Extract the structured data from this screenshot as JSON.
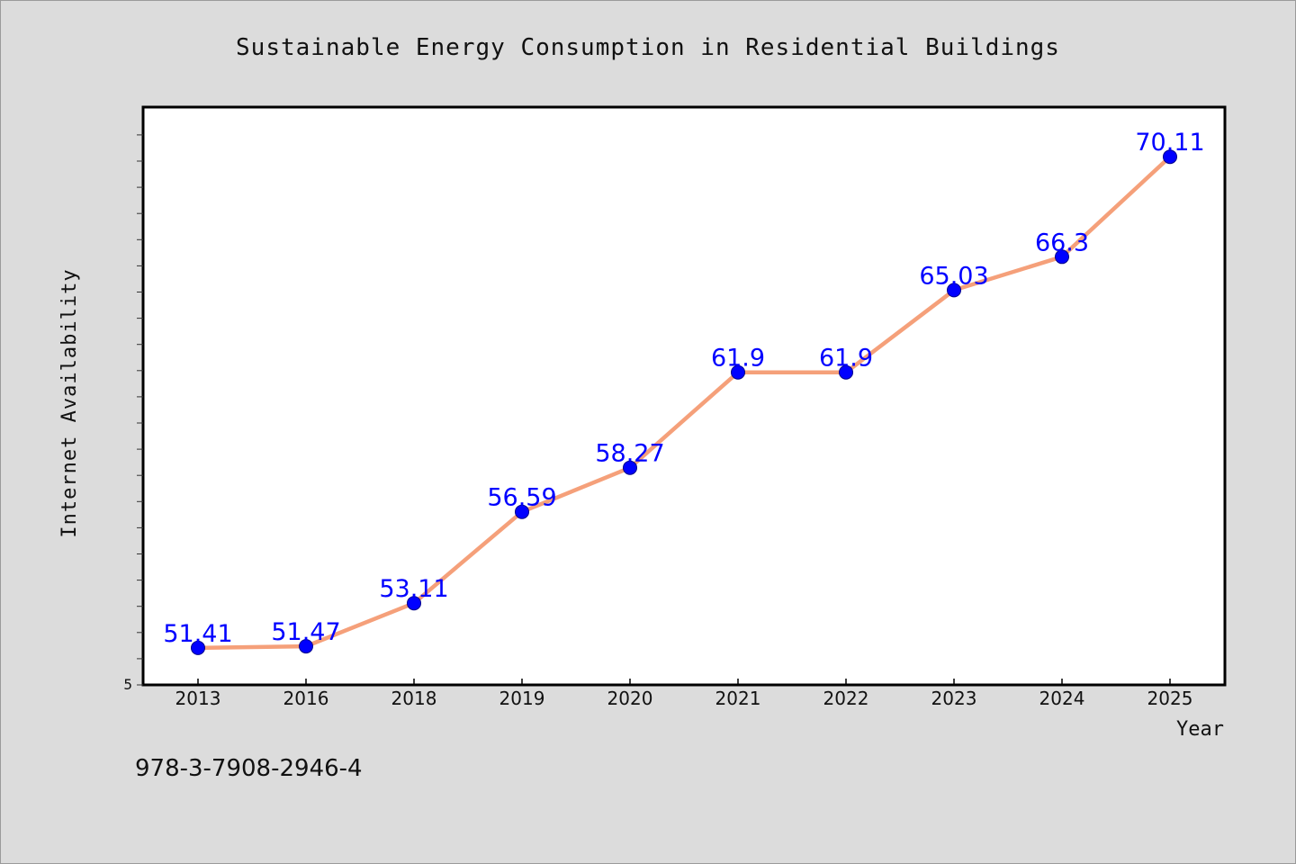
{
  "colors": {
    "background": "#dcdcdc",
    "plot_background": "#ffffff",
    "line": "#f5a07a",
    "marker": "#0000ff",
    "data_label": "#0000ff",
    "text": "#111111"
  },
  "footer": {
    "isbn": "978-3-7908-2946-4"
  },
  "chart_data": {
    "type": "line",
    "title": "Sustainable Energy Consumption in Residential Buildings",
    "xlabel": "Year",
    "ylabel": "Internet Availability",
    "categories": [
      "2013",
      "2016",
      "2018",
      "2019",
      "2020",
      "2021",
      "2022",
      "2023",
      "2024",
      "2025"
    ],
    "series": [
      {
        "values": [
          51.41,
          51.47,
          53.11,
          56.59,
          58.27,
          61.9,
          61.9,
          65.03,
          66.3,
          70.11
        ],
        "labels": [
          "51.41",
          "51.47",
          "53.11",
          "56.59",
          "58.27",
          "61.9",
          "61.9",
          "65.03",
          "66.3",
          "70.11"
        ]
      }
    ],
    "ylim": [
      50,
      72
    ],
    "y_tick_label": "5",
    "grid": false,
    "legend": "none"
  }
}
